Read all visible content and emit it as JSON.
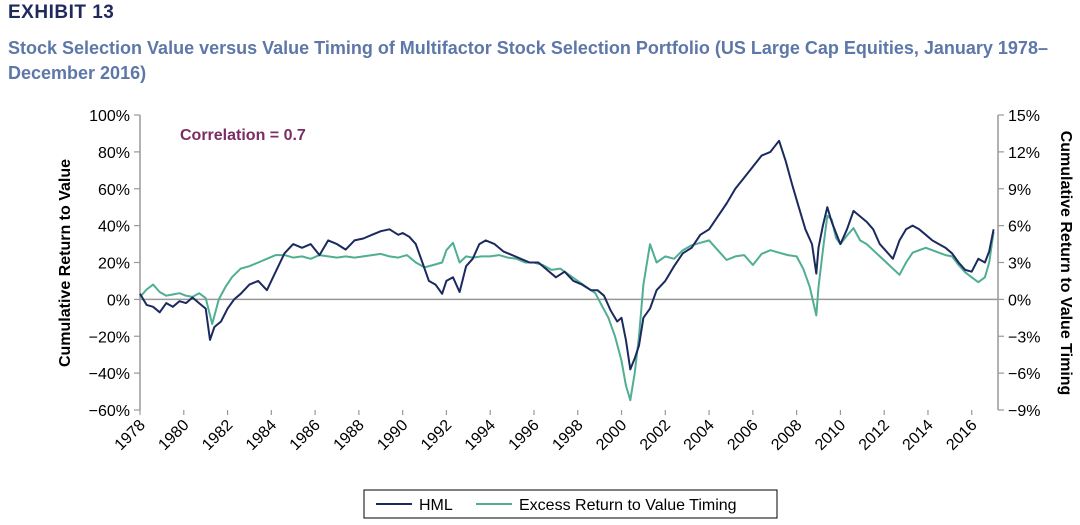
{
  "header": {
    "exhibit": "EXHIBIT 13",
    "title": "Stock Selection Value versus Value Timing of Multifactor Stock Selection Portfolio (US Large Cap Equities, January 1978–December 2016)"
  },
  "chart_data": {
    "type": "line",
    "annotation": "Correlation = 0.7",
    "ylabel": "Cumulative Return to Value",
    "y2label": "Cumulative  Return to Value Timing",
    "ylim": [
      -0.6,
      1.0
    ],
    "y2lim": [
      -0.09,
      0.15
    ],
    "xlim": [
      1978,
      2017.2
    ],
    "yticks": [
      "100%",
      "80%",
      "60%",
      "40%",
      "20%",
      "0%",
      "−20%",
      "−40%",
      "−60%"
    ],
    "y2ticks": [
      "15%",
      "12%",
      "9%",
      "6%",
      "3%",
      "0%",
      "−3%",
      "−6%",
      "−9%"
    ],
    "xticks": [
      "1978",
      "1980",
      "1982",
      "1984",
      "1986",
      "1988",
      "1990",
      "1992",
      "1994",
      "1996",
      "1998",
      "2000",
      "2002",
      "2004",
      "2006",
      "2008",
      "2010",
      "2012",
      "2014",
      "2016"
    ],
    "legend_position": "bottom",
    "series": [
      {
        "name": "HML",
        "axis": "left",
        "color": "#1b2a5e",
        "x": [
          1978.0,
          1978.3,
          1978.6,
          1978.9,
          1979.2,
          1979.5,
          1979.8,
          1980.1,
          1980.4,
          1980.7,
          1981.0,
          1981.2,
          1981.4,
          1981.7,
          1982.0,
          1982.3,
          1982.6,
          1983.0,
          1983.4,
          1983.8,
          1984.2,
          1984.6,
          1985.0,
          1985.4,
          1985.8,
          1986.2,
          1986.6,
          1987.0,
          1987.4,
          1987.8,
          1988.2,
          1988.6,
          1989.0,
          1989.4,
          1989.8,
          1990.0,
          1990.3,
          1990.6,
          1990.9,
          1991.2,
          1991.5,
          1991.8,
          1992.0,
          1992.3,
          1992.6,
          1992.9,
          1993.2,
          1993.5,
          1993.8,
          1994.2,
          1994.6,
          1995.0,
          1995.4,
          1995.8,
          1996.2,
          1996.6,
          1997.0,
          1997.4,
          1997.8,
          1998.2,
          1998.6,
          1998.9,
          1999.2,
          1999.5,
          1999.8,
          2000.0,
          2000.2,
          2000.4,
          2000.6,
          2000.8,
          2001.0,
          2001.3,
          2001.6,
          2002.0,
          2002.4,
          2002.8,
          2003.2,
          2003.6,
          2004.0,
          2004.4,
          2004.8,
          2005.2,
          2005.6,
          2006.0,
          2006.4,
          2006.8,
          2007.0,
          2007.2,
          2007.5,
          2007.8,
          2008.1,
          2008.4,
          2008.7,
          2008.9,
          2009.0,
          2009.2,
          2009.4,
          2009.6,
          2009.8,
          2010.0,
          2010.3,
          2010.6,
          2010.9,
          2011.2,
          2011.5,
          2011.8,
          2012.1,
          2012.4,
          2012.7,
          2013.0,
          2013.3,
          2013.6,
          2013.9,
          2014.2,
          2014.5,
          2014.8,
          2015.1,
          2015.4,
          2015.7,
          2016.0,
          2016.3,
          2016.6,
          2016.8,
          2017.0
        ],
        "y": [
          0.03,
          -0.03,
          -0.04,
          -0.07,
          -0.02,
          -0.04,
          -0.01,
          -0.02,
          0.01,
          -0.02,
          -0.05,
          -0.22,
          -0.15,
          -0.12,
          -0.05,
          0.0,
          0.03,
          0.08,
          0.1,
          0.05,
          0.15,
          0.25,
          0.3,
          0.28,
          0.3,
          0.24,
          0.32,
          0.3,
          0.27,
          0.32,
          0.33,
          0.35,
          0.37,
          0.38,
          0.35,
          0.36,
          0.34,
          0.3,
          0.2,
          0.1,
          0.08,
          0.03,
          0.1,
          0.12,
          0.04,
          0.18,
          0.22,
          0.3,
          0.32,
          0.3,
          0.26,
          0.24,
          0.22,
          0.2,
          0.2,
          0.16,
          0.12,
          0.15,
          0.1,
          0.08,
          0.05,
          0.05,
          0.02,
          -0.06,
          -0.12,
          -0.1,
          -0.22,
          -0.38,
          -0.32,
          -0.25,
          -0.1,
          -0.05,
          0.05,
          0.1,
          0.18,
          0.25,
          0.28,
          0.35,
          0.38,
          0.45,
          0.52,
          0.6,
          0.66,
          0.72,
          0.78,
          0.8,
          0.83,
          0.86,
          0.75,
          0.62,
          0.5,
          0.38,
          0.3,
          0.14,
          0.28,
          0.4,
          0.5,
          0.42,
          0.36,
          0.3,
          0.38,
          0.48,
          0.45,
          0.42,
          0.38,
          0.3,
          0.26,
          0.22,
          0.32,
          0.38,
          0.4,
          0.38,
          0.35,
          0.32,
          0.3,
          0.28,
          0.25,
          0.2,
          0.16,
          0.15,
          0.22,
          0.2,
          0.26,
          0.38
        ]
      },
      {
        "name": "Excess Return to Value Timing",
        "axis": "right",
        "color": "#4fae93",
        "x": [
          1978.0,
          1978.3,
          1978.6,
          1978.9,
          1979.2,
          1979.5,
          1979.8,
          1980.1,
          1980.4,
          1980.7,
          1981.0,
          1981.3,
          1981.6,
          1981.9,
          1982.2,
          1982.6,
          1983.0,
          1983.4,
          1983.8,
          1984.2,
          1984.6,
          1985.0,
          1985.4,
          1985.8,
          1986.2,
          1986.6,
          1987.0,
          1987.4,
          1987.8,
          1988.2,
          1988.6,
          1989.0,
          1989.4,
          1989.8,
          1990.2,
          1990.6,
          1991.0,
          1991.4,
          1991.8,
          1992.0,
          1992.3,
          1992.6,
          1992.9,
          1993.2,
          1993.6,
          1994.0,
          1994.4,
          1994.8,
          1995.2,
          1995.6,
          1996.0,
          1996.4,
          1996.8,
          1997.2,
          1997.6,
          1998.0,
          1998.4,
          1998.8,
          1999.1,
          1999.4,
          1999.7,
          2000.0,
          2000.2,
          2000.4,
          2000.6,
          2000.8,
          2001.0,
          2001.3,
          2001.6,
          2002.0,
          2002.4,
          2002.8,
          2003.2,
          2003.6,
          2004.0,
          2004.4,
          2004.8,
          2005.2,
          2005.6,
          2006.0,
          2006.4,
          2006.8,
          2007.2,
          2007.6,
          2008.0,
          2008.3,
          2008.6,
          2008.9,
          2009.0,
          2009.2,
          2009.4,
          2009.6,
          2009.8,
          2010.0,
          2010.3,
          2010.6,
          2010.9,
          2011.2,
          2011.5,
          2011.8,
          2012.1,
          2012.4,
          2012.7,
          2013.0,
          2013.3,
          2013.6,
          2013.9,
          2014.2,
          2014.5,
          2014.8,
          2015.1,
          2015.4,
          2015.7,
          2016.0,
          2016.3,
          2016.6,
          2016.8,
          2017.0
        ],
        "y": [
          0.002,
          0.008,
          0.012,
          0.006,
          0.003,
          0.004,
          0.005,
          0.003,
          0.002,
          0.005,
          0.001,
          -0.02,
          0.0,
          0.01,
          0.018,
          0.025,
          0.027,
          0.03,
          0.033,
          0.036,
          0.036,
          0.034,
          0.035,
          0.033,
          0.036,
          0.035,
          0.034,
          0.035,
          0.034,
          0.035,
          0.036,
          0.037,
          0.035,
          0.034,
          0.036,
          0.03,
          0.026,
          0.028,
          0.03,
          0.04,
          0.046,
          0.03,
          0.035,
          0.034,
          0.035,
          0.035,
          0.036,
          0.034,
          0.033,
          0.03,
          0.03,
          0.028,
          0.024,
          0.025,
          0.02,
          0.015,
          0.01,
          0.005,
          -0.005,
          -0.015,
          -0.03,
          -0.05,
          -0.07,
          -0.082,
          -0.06,
          -0.03,
          0.012,
          0.045,
          0.03,
          0.035,
          0.033,
          0.04,
          0.044,
          0.046,
          0.048,
          0.04,
          0.032,
          0.035,
          0.036,
          0.028,
          0.037,
          0.04,
          0.038,
          0.036,
          0.035,
          0.025,
          0.01,
          -0.013,
          0.01,
          0.04,
          0.068,
          0.065,
          0.05,
          0.045,
          0.052,
          0.058,
          0.048,
          0.045,
          0.04,
          0.035,
          0.03,
          0.025,
          0.02,
          0.03,
          0.038,
          0.04,
          0.042,
          0.04,
          0.038,
          0.036,
          0.035,
          0.028,
          0.022,
          0.018,
          0.014,
          0.018,
          0.03,
          0.055
        ]
      }
    ]
  }
}
